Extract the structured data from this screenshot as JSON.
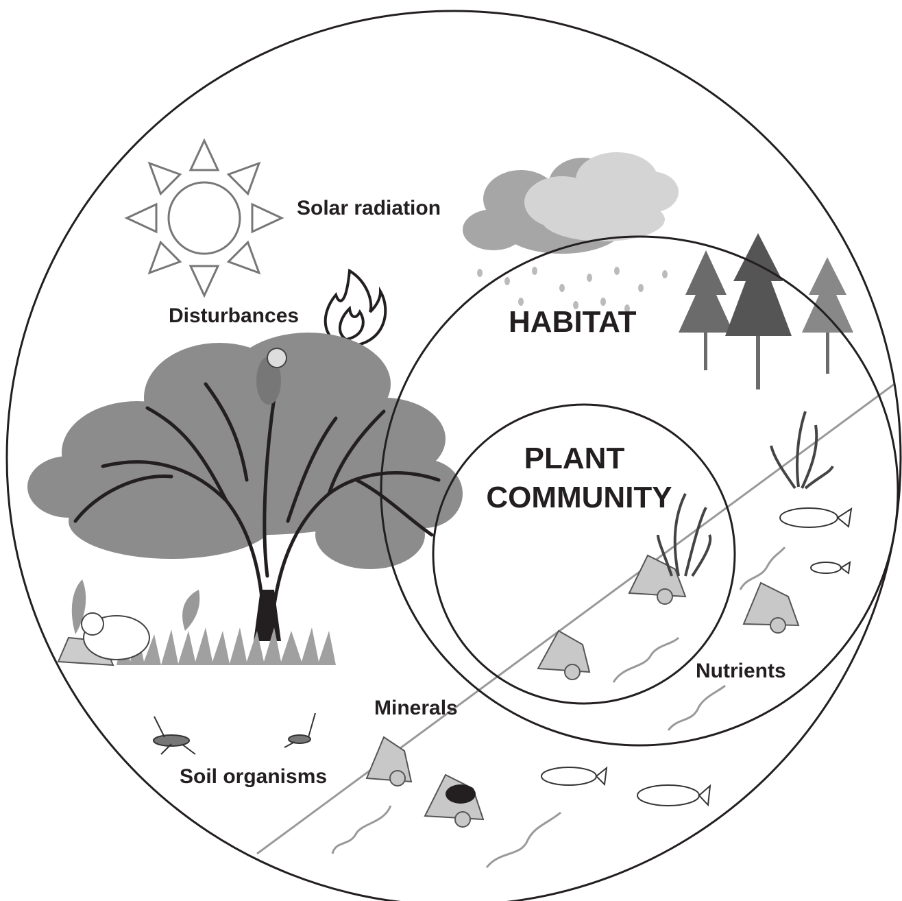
{
  "labels": {
    "solar_radiation": "Solar radiation",
    "disturbances": "Disturbances",
    "habitat": "HABITAT",
    "plant_community": [
      "PLANT",
      "COMMUNITY"
    ],
    "nutrients": "Nutrients",
    "minerals": "Minerals",
    "soil_organisms": "Soil organisms"
  }
}
